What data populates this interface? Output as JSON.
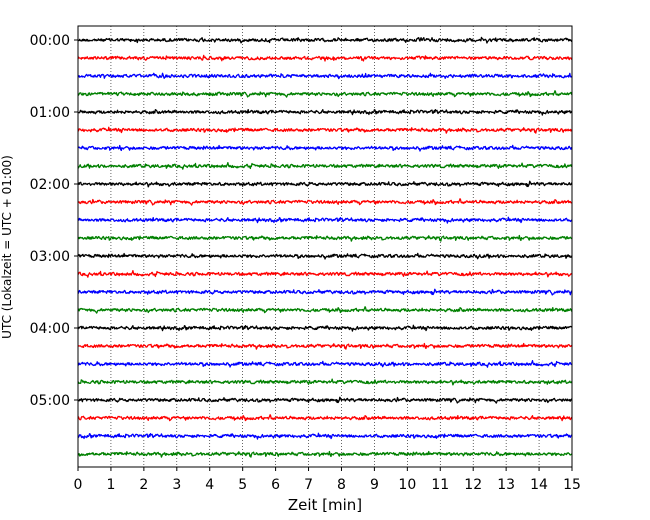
{
  "chart_data": {
    "type": "line",
    "title": "",
    "xlabel": "Zeit  [min]",
    "ylabel": "UTC (Lokalzeit = UTC + 01:00)",
    "xlim": [
      0,
      15
    ],
    "x_ticks": [
      "0",
      "1",
      "2",
      "3",
      "4",
      "5",
      "6",
      "7",
      "8",
      "9",
      "10",
      "11",
      "12",
      "13",
      "14",
      "15"
    ],
    "y_ticks": [
      "00:00",
      "01:00",
      "02:00",
      "03:00",
      "04:00",
      "05:00"
    ],
    "grid": "vertical dotted",
    "trace_colors": [
      "#000000",
      "#ff0000",
      "#0000ff",
      "#008000"
    ],
    "series": [
      {
        "start": "00:00",
        "color": "#000000"
      },
      {
        "start": "00:15",
        "color": "#ff0000"
      },
      {
        "start": "00:30",
        "color": "#0000ff"
      },
      {
        "start": "00:45",
        "color": "#008000"
      },
      {
        "start": "01:00",
        "color": "#000000"
      },
      {
        "start": "01:15",
        "color": "#ff0000"
      },
      {
        "start": "01:30",
        "color": "#0000ff"
      },
      {
        "start": "01:45",
        "color": "#008000"
      },
      {
        "start": "02:00",
        "color": "#000000"
      },
      {
        "start": "02:15",
        "color": "#ff0000"
      },
      {
        "start": "02:30",
        "color": "#0000ff"
      },
      {
        "start": "02:45",
        "color": "#008000"
      },
      {
        "start": "03:00",
        "color": "#000000"
      },
      {
        "start": "03:15",
        "color": "#ff0000"
      },
      {
        "start": "03:30",
        "color": "#0000ff"
      },
      {
        "start": "03:45",
        "color": "#008000"
      },
      {
        "start": "04:00",
        "color": "#000000"
      },
      {
        "start": "04:15",
        "color": "#ff0000"
      },
      {
        "start": "04:30",
        "color": "#0000ff"
      },
      {
        "start": "04:45",
        "color": "#008000"
      },
      {
        "start": "05:00",
        "color": "#000000"
      },
      {
        "start": "05:15",
        "color": "#ff0000"
      },
      {
        "start": "05:30",
        "color": "#0000ff"
      },
      {
        "start": "05:45",
        "color": "#008000"
      }
    ]
  }
}
